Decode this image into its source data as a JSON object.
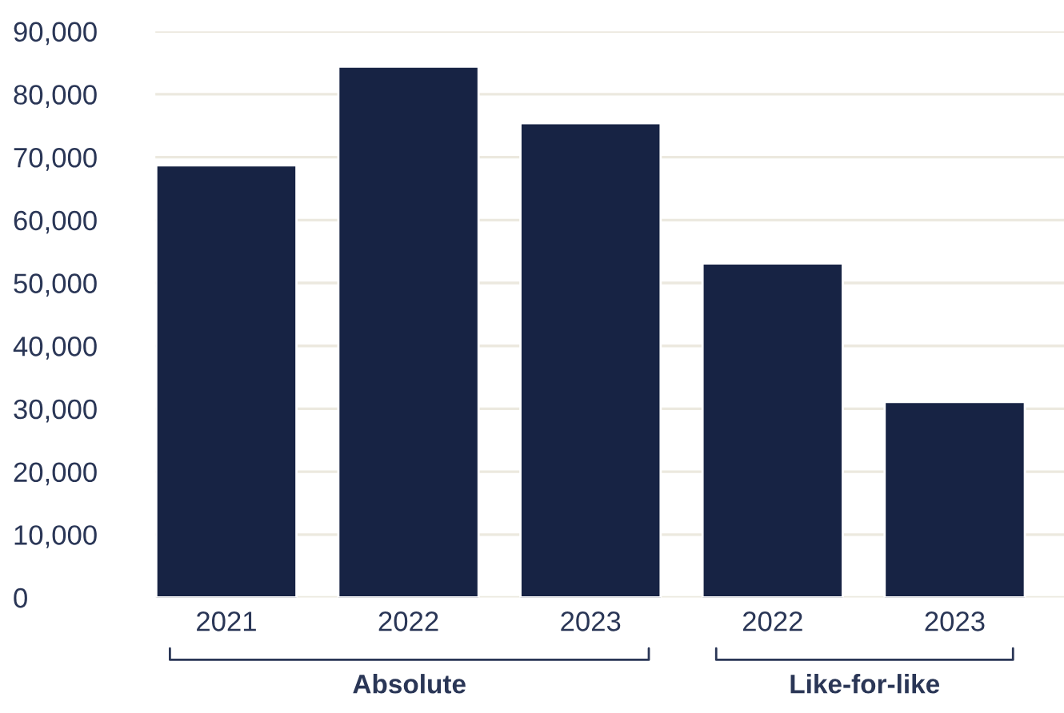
{
  "chart_data": {
    "type": "bar",
    "categories": [
      "2021",
      "2022",
      "2023",
      "2022",
      "2023"
    ],
    "values": [
      68700,
      84400,
      75400,
      53100,
      31100
    ],
    "color": "#172344",
    "ylim": [
      0,
      90000
    ],
    "yticks": [
      {
        "value": 0,
        "label": "0"
      },
      {
        "value": 10000,
        "label": "10,000"
      },
      {
        "value": 20000,
        "label": "20,000"
      },
      {
        "value": 30000,
        "label": "30,000"
      },
      {
        "value": 40000,
        "label": "40,000"
      },
      {
        "value": 50000,
        "label": "50,000"
      },
      {
        "value": 60000,
        "label": "60,000"
      },
      {
        "value": 70000,
        "label": "70,000"
      },
      {
        "value": 80000,
        "label": "80,000"
      },
      {
        "value": 90000,
        "label": "90,000"
      }
    ],
    "grid": "y",
    "annotations": [
      "Absolute",
      "Like-for-like"
    ]
  }
}
